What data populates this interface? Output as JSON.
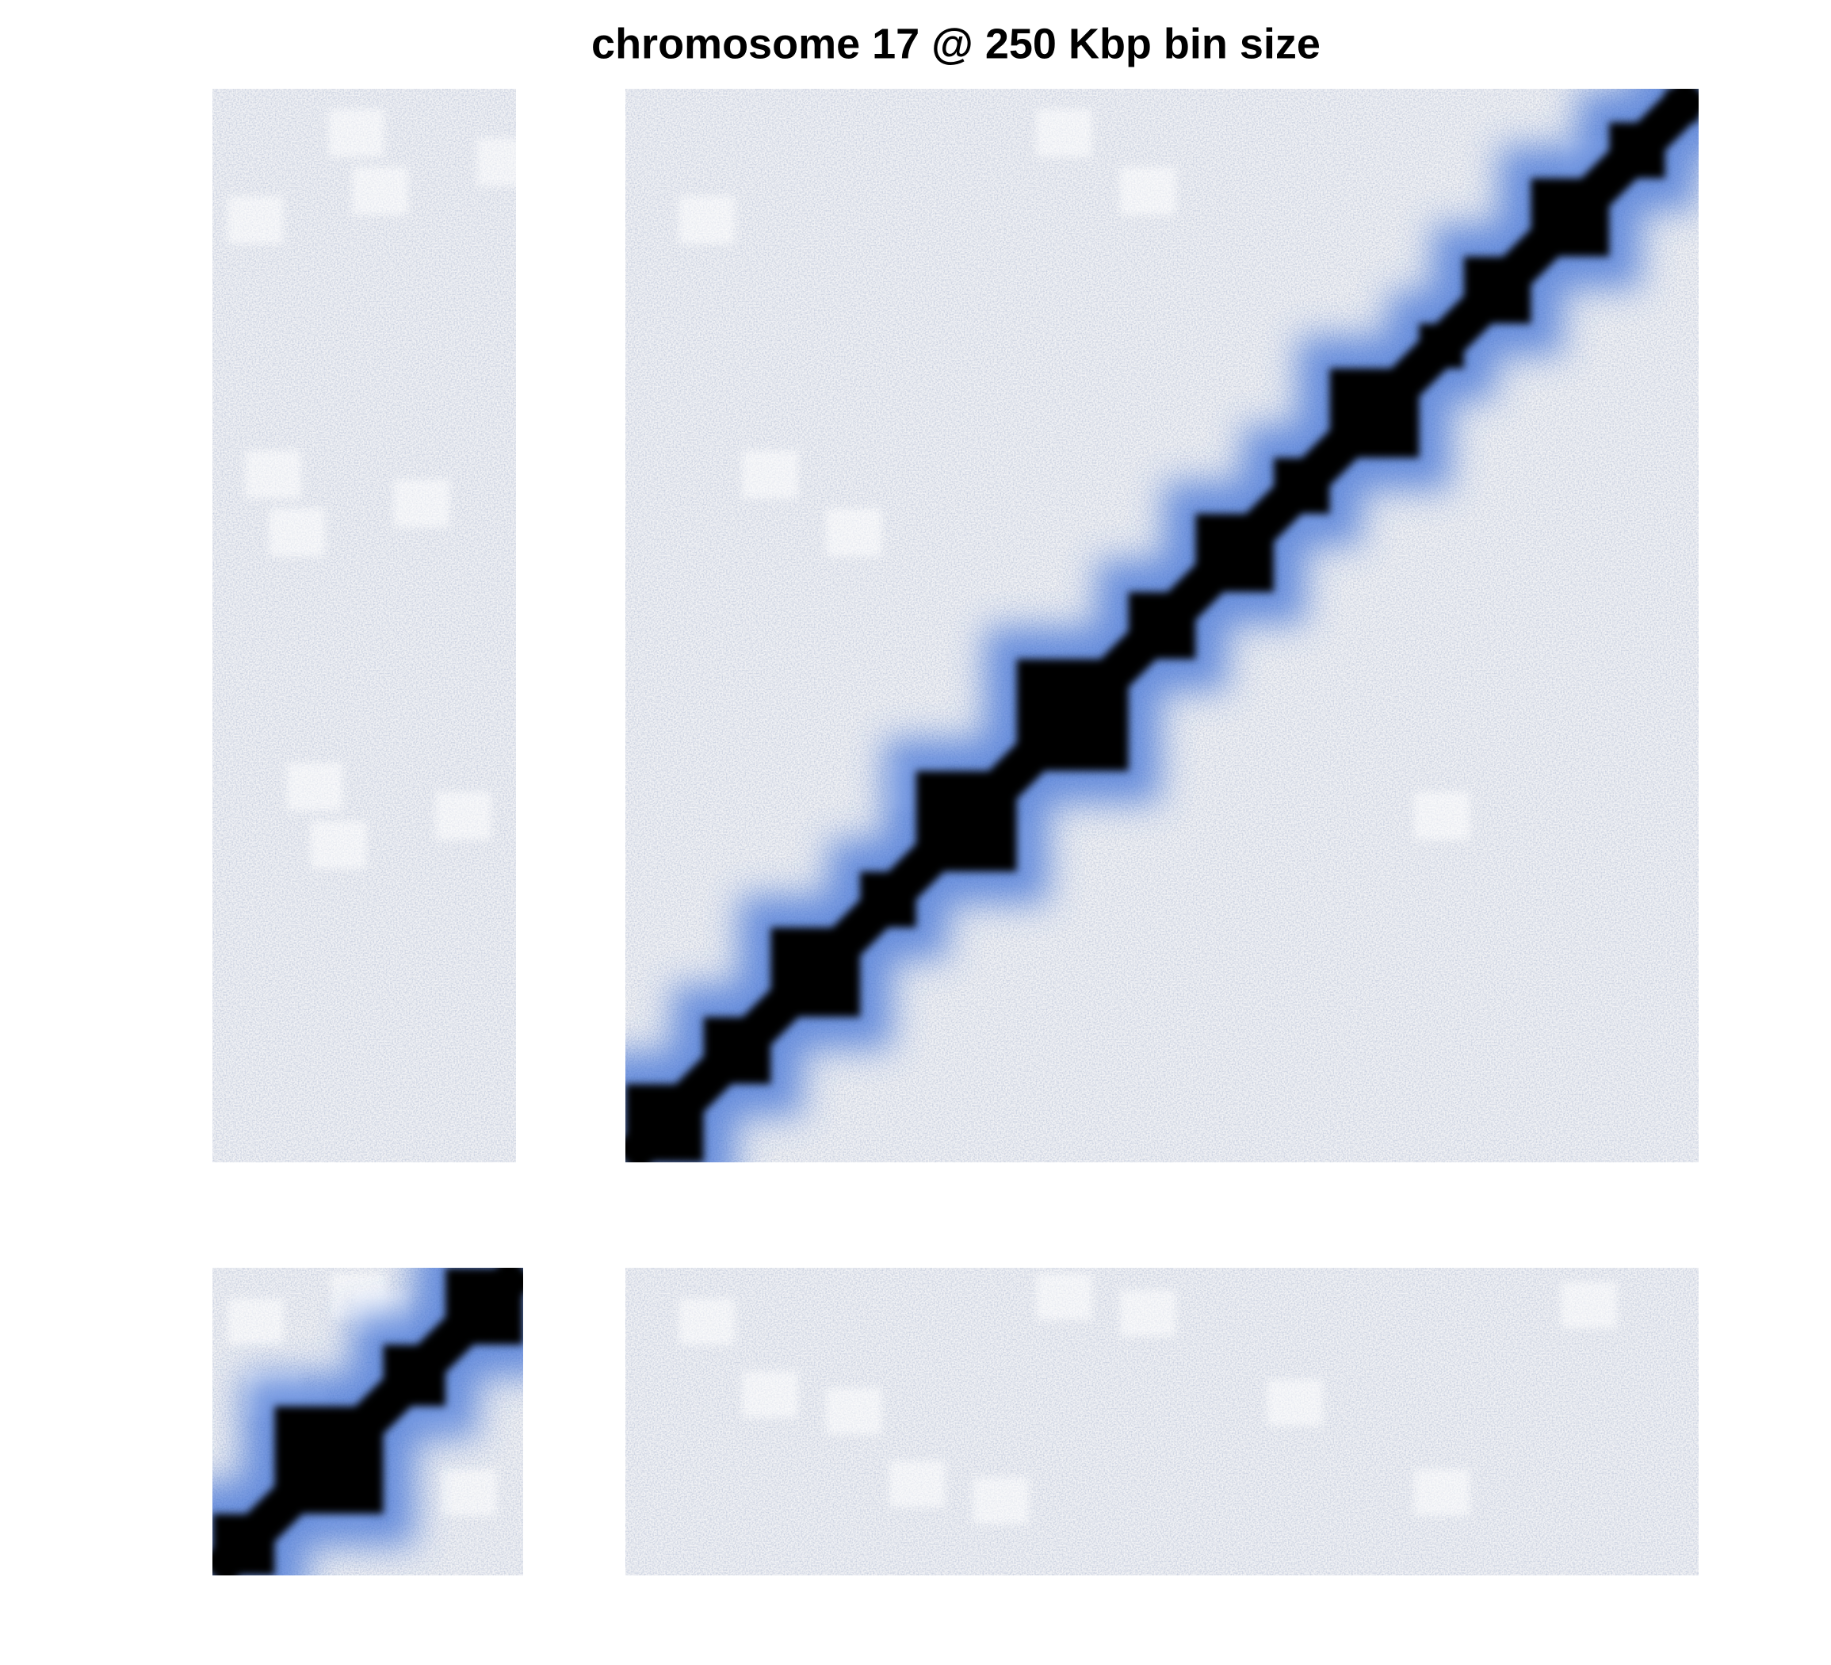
{
  "chart_data": {
    "type": "heatmap",
    "title": "chromosome 17 @ 250 Kbp bin size"
  }
}
